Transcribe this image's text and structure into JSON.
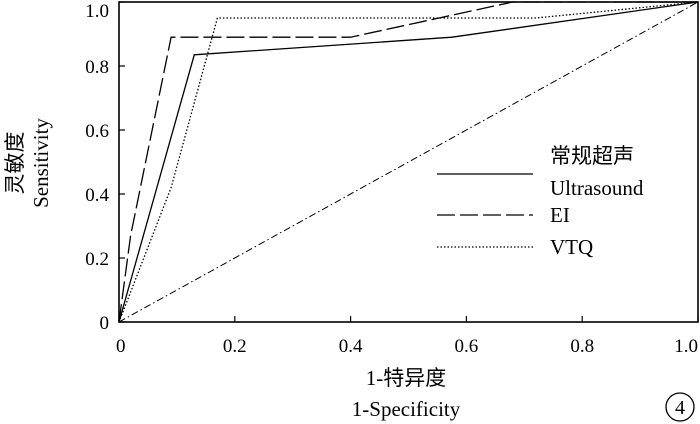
{
  "chart_data": {
    "type": "line",
    "title": "",
    "xlabel": "1-特异度",
    "xlabel_en": "1-Specificity",
    "ylabel": "灵敏度",
    "ylabel_en": "Sensitivity",
    "xlim": [
      0,
      1.0
    ],
    "ylim": [
      0,
      1.0
    ],
    "x_ticks": [
      "0",
      "0.2",
      "0.4",
      "0.6",
      "0.8",
      "1.0"
    ],
    "y_ticks": [
      "0",
      "0.2",
      "0.4",
      "0.6",
      "0.8",
      "1.0"
    ],
    "grid": false,
    "legend_position": "right",
    "panel_label": "4",
    "series": [
      {
        "name": "常规超声",
        "name_en": "Ultrasound",
        "style": "solid",
        "x": [
          0,
          0.13,
          0.575,
          1.0
        ],
        "y": [
          0,
          0.835,
          0.89,
          1.0
        ]
      },
      {
        "name": "EI",
        "style": "dashed",
        "x": [
          0,
          0.02,
          0.09,
          0.4,
          0.68,
          1.0
        ],
        "y": [
          0,
          0.27,
          0.89,
          0.89,
          1.0,
          1.0
        ]
      },
      {
        "name": "VTQ",
        "style": "dotted",
        "x": [
          0,
          0.09,
          0.17,
          0.72,
          1.0
        ],
        "y": [
          0,
          0.42,
          0.95,
          0.95,
          1.0
        ]
      },
      {
        "name": "",
        "style": "dash-dot",
        "x": [
          0,
          1.0
        ],
        "y": [
          0,
          1.0
        ]
      }
    ]
  }
}
